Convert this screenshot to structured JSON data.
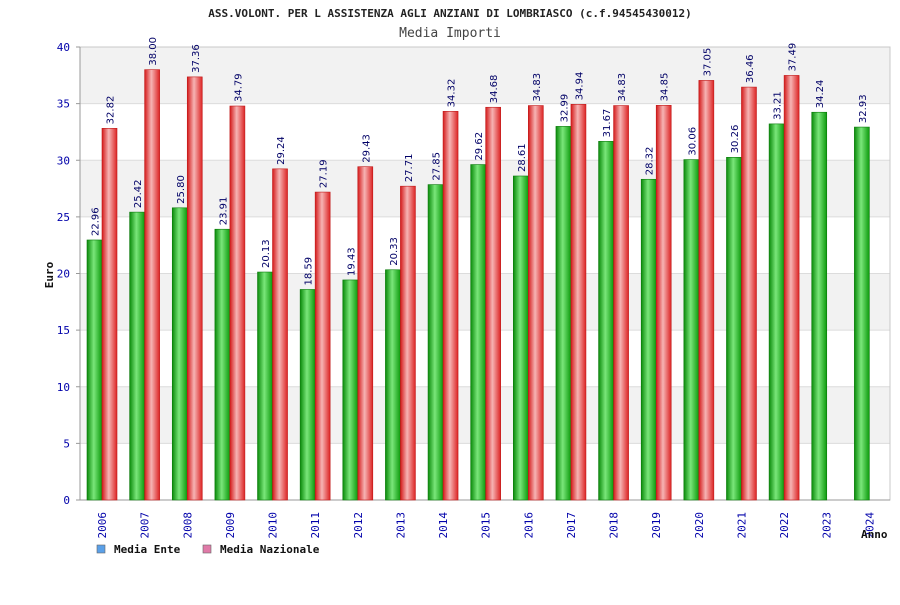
{
  "chart_data": {
    "type": "bar",
    "title": "ASS.VOLONT. PER L ASSISTENZA AGLI ANZIANI DI LOMBRIASCO (c.f.94545430012)",
    "subtitle": "Media Importi",
    "xlabel": "Anno",
    "ylabel": "Euro",
    "ylim": [
      0,
      40
    ],
    "yticks": [
      0,
      5,
      10,
      15,
      20,
      25,
      30,
      35,
      40
    ],
    "grid": true,
    "legend_position": "bottom-left",
    "categories": [
      "2006",
      "2007",
      "2008",
      "2009",
      "2010",
      "2011",
      "2012",
      "2013",
      "2014",
      "2015",
      "2016",
      "2017",
      "2018",
      "2019",
      "2020",
      "2021",
      "2022",
      "2023",
      "2024"
    ],
    "series": [
      {
        "name": "Media Ente",
        "bar_color": "#22bb22",
        "legend_color": "#5aa0e8",
        "values": [
          22.96,
          25.42,
          25.8,
          23.91,
          20.13,
          18.59,
          19.43,
          20.33,
          27.85,
          29.62,
          28.61,
          32.99,
          31.67,
          28.32,
          30.06,
          30.26,
          33.21,
          34.24,
          32.93
        ],
        "labels": [
          "22.96",
          "25.42",
          "25.80",
          "23.91",
          "20.13",
          "18.59",
          "19.43",
          "20.33",
          "27.85",
          "29.62",
          "28.61",
          "32.99",
          "31.67",
          "28.32",
          "30.06",
          "30.26",
          "33.21",
          "34.24",
          "32.93"
        ]
      },
      {
        "name": "Media Nazionale",
        "bar_color": "#e82a2a",
        "legend_color": "#e07aa8",
        "values": [
          32.82,
          38.0,
          37.36,
          34.79,
          29.24,
          27.19,
          29.43,
          27.71,
          34.32,
          34.68,
          34.83,
          34.94,
          34.83,
          34.85,
          37.05,
          36.46,
          37.49,
          null,
          null
        ],
        "labels": [
          "32.82",
          "38.00",
          "37.36",
          "34.79",
          "29.24",
          "27.19",
          "29.43",
          "27.71",
          "34.32",
          "34.68",
          "34.83",
          "34.94",
          "34.83",
          "34.85",
          "37.05",
          "36.46",
          "37.49",
          null,
          null
        ]
      }
    ]
  }
}
